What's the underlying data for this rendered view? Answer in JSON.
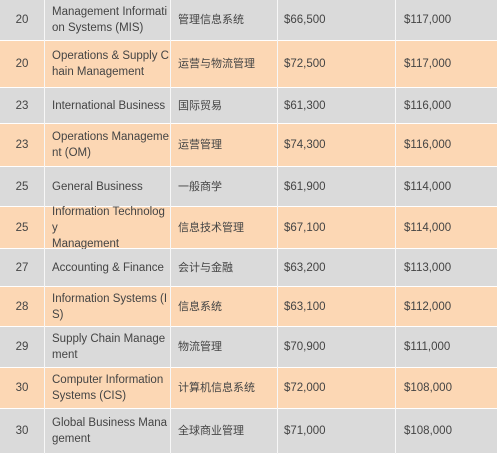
{
  "rows": [
    {
      "rank": "20",
      "major_lines": [
        "Management Informati",
        "on Systems (MIS)"
      ],
      "chinese": "管理信息系统",
      "starting_salary": "$66,500",
      "mid_career_salary": "$117,000"
    },
    {
      "rank": "20",
      "major_lines": [
        "Operations & Supply C",
        "hain Management"
      ],
      "chinese": "运营与物流管理",
      "starting_salary": "$72,500",
      "mid_career_salary": "$117,000"
    },
    {
      "rank": "23",
      "major_lines": [
        "International Business"
      ],
      "chinese": "国际贸易",
      "starting_salary": "$61,300",
      "mid_career_salary": "$116,000"
    },
    {
      "rank": "23",
      "major_lines": [
        "Operations Manageme",
        "nt (OM)"
      ],
      "chinese": "运营管理",
      "starting_salary": "$74,300",
      "mid_career_salary": "$116,000"
    },
    {
      "rank": "25",
      "major_lines": [
        "General Business"
      ],
      "chinese": "一般商学",
      "starting_salary": "$61,900",
      "mid_career_salary": "$114,000"
    },
    {
      "rank": "25",
      "major_lines": [
        "Information Technology",
        "Management"
      ],
      "chinese": "信息技术管理",
      "starting_salary": "$67,100",
      "mid_career_salary": "$114,000"
    },
    {
      "rank": "27",
      "major_lines": [
        "Accounting & Finance"
      ],
      "chinese": "会计与金融",
      "starting_salary": "$63,200",
      "mid_career_salary": "$113,000"
    },
    {
      "rank": "28",
      "major_lines": [
        "Information Systems (I",
        "S)"
      ],
      "chinese": "信息系统",
      "starting_salary": "$63,100",
      "mid_career_salary": "$112,000"
    },
    {
      "rank": "29",
      "major_lines": [
        "Supply Chain Manage",
        "ment"
      ],
      "chinese": "物流管理",
      "starting_salary": "$70,900",
      "mid_career_salary": "$111,000"
    },
    {
      "rank": "30",
      "major_lines": [
        "Computer Information",
        "Systems (CIS)"
      ],
      "chinese": "计算机信息系统",
      "starting_salary": "$72,000",
      "mid_career_salary": "$108,000"
    },
    {
      "rank": "30",
      "major_lines": [
        "Global Business Mana",
        "gement"
      ],
      "chinese": "全球商业管理",
      "starting_salary": "$71,000",
      "mid_career_salary": "$108,000"
    }
  ],
  "colors": {
    "gray_row": "#dadada",
    "peach_row": "#fcd7b4",
    "text": "#444444"
  }
}
